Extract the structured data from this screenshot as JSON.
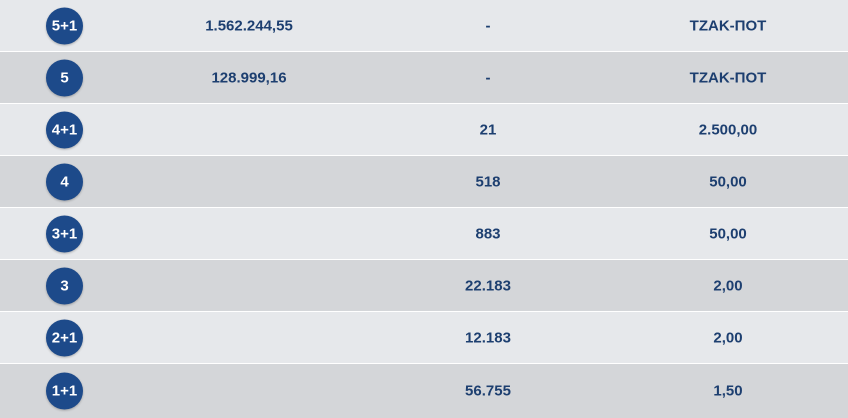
{
  "rows": [
    {
      "category": "5+1",
      "jackpot": "1.562.244,55",
      "winners": "-",
      "prize": "ΤΖΑΚ-ΠΟΤ"
    },
    {
      "category": "5",
      "jackpot": "128.999,16",
      "winners": "-",
      "prize": "ΤΖΑΚ-ΠΟΤ"
    },
    {
      "category": "4+1",
      "jackpot": "",
      "winners": "21",
      "prize": "2.500,00"
    },
    {
      "category": "4",
      "jackpot": "",
      "winners": "518",
      "prize": "50,00"
    },
    {
      "category": "3+1",
      "jackpot": "",
      "winners": "883",
      "prize": "50,00"
    },
    {
      "category": "3",
      "jackpot": "",
      "winners": "22.183",
      "prize": "2,00"
    },
    {
      "category": "2+1",
      "jackpot": "",
      "winners": "12.183",
      "prize": "2,00"
    },
    {
      "category": "1+1",
      "jackpot": "",
      "winners": "56.755",
      "prize": "1,50"
    }
  ],
  "colors": {
    "badge": "#1d4a8a",
    "text": "#1d3f70",
    "row_light": "#e6e8eb",
    "row_dark": "#d4d6d9"
  }
}
